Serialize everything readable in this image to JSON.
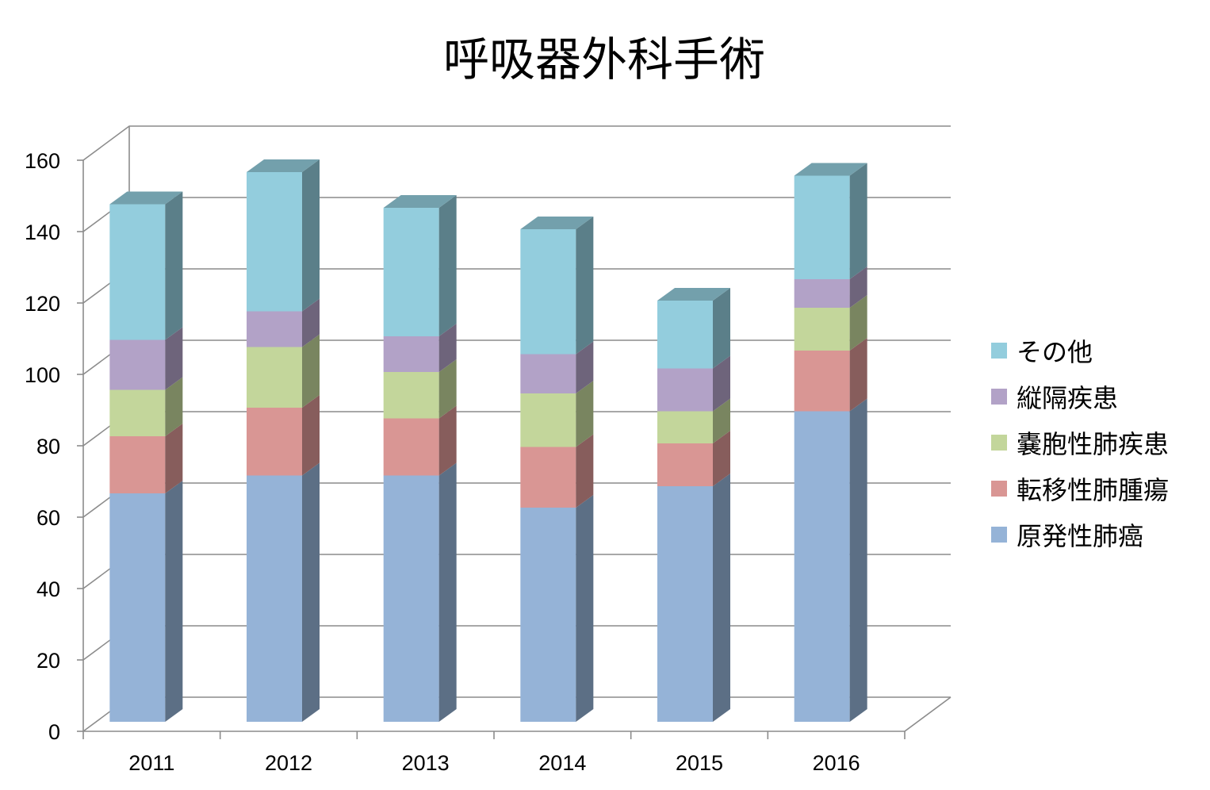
{
  "chart_data": {
    "type": "bar",
    "stacked": true,
    "style": "3d-column",
    "title": "呼吸器外科手術",
    "xlabel": "",
    "ylabel": "",
    "categories": [
      "2011",
      "2012",
      "2013",
      "2014",
      "2015",
      "2016"
    ],
    "ylim": [
      0,
      160
    ],
    "yticks": [
      0,
      20,
      40,
      60,
      80,
      100,
      120,
      140,
      160
    ],
    "grid": true,
    "legend_position": "right",
    "series": [
      {
        "name": "原発性肺癌",
        "values": [
          64,
          69,
          69,
          60,
          66,
          87
        ],
        "color": "#95b3d7"
      },
      {
        "name": "転移性肺腫瘍",
        "values": [
          16,
          19,
          16,
          17,
          12,
          17
        ],
        "color": "#d99694"
      },
      {
        "name": "嚢胞性肺疾患",
        "values": [
          13,
          17,
          13,
          15,
          9,
          12
        ],
        "color": "#c3d69b"
      },
      {
        "name": "縦隔疾患",
        "values": [
          14,
          10,
          10,
          11,
          12,
          8
        ],
        "color": "#b2a2c7"
      },
      {
        "name": "その他",
        "values": [
          38,
          39,
          36,
          35,
          19,
          29
        ],
        "color": "#93cddd"
      }
    ]
  }
}
